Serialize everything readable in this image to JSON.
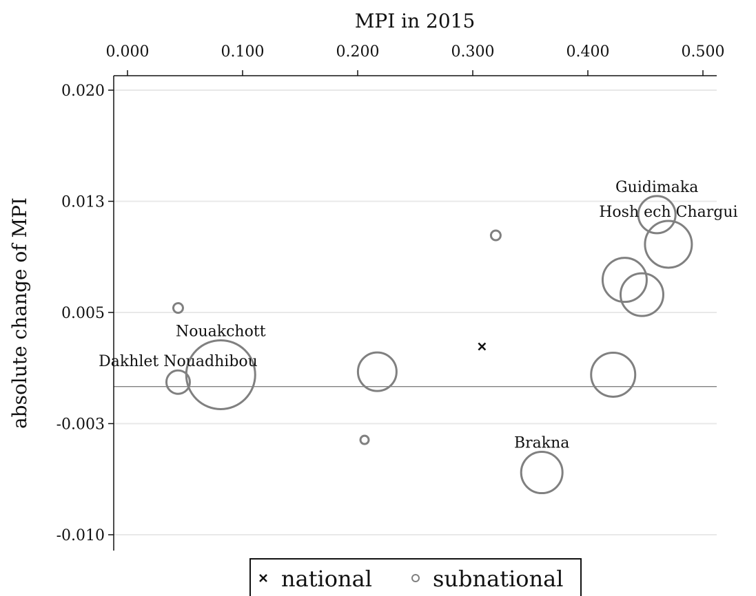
{
  "chart_data": {
    "type": "scatter",
    "title": "",
    "xlabel": "MPI in 2015",
    "ylabel": "absolute change of MPI",
    "xaxis_position": "top",
    "xlim": [
      0.0,
      0.5
    ],
    "ylim": [
      -0.01,
      0.02
    ],
    "x_ticks": [
      "0.000",
      "0.100",
      "0.200",
      "0.300",
      "0.400",
      "0.500"
    ],
    "x_tick_values": [
      0.0,
      0.1,
      0.2,
      0.3,
      0.4,
      0.5
    ],
    "y_ticks": [
      "0.020",
      "0.013",
      "0.005",
      "-0.003",
      "-0.010"
    ],
    "y_tick_values": [
      0.02,
      0.0125,
      0.005,
      -0.0025,
      -0.01
    ],
    "reference_line_y": 0,
    "grid": "horizontal",
    "legend": {
      "position": "bottom",
      "items": [
        {
          "label": "national",
          "marker": "x"
        },
        {
          "label": "subnational",
          "marker": "circle"
        }
      ]
    },
    "series": [
      {
        "name": "national",
        "marker": "x",
        "points": [
          {
            "x": 0.308,
            "y": 0.0027
          }
        ]
      },
      {
        "name": "subnational",
        "marker": "circle",
        "points": [
          {
            "label": "Dakhlet Nouadhibou",
            "x": 0.044,
            "y": 0.0003,
            "size": 17
          },
          {
            "label": "Nouakchott",
            "x": 0.081,
            "y": 0.0008,
            "size": 50
          },
          {
            "label": "",
            "x": 0.044,
            "y": 0.0053,
            "size": 7
          },
          {
            "label": "",
            "x": 0.206,
            "y": -0.0036,
            "size": 6
          },
          {
            "label": "",
            "x": 0.217,
            "y": 0.001,
            "size": 28
          },
          {
            "label": "",
            "x": 0.32,
            "y": 0.0102,
            "size": 7
          },
          {
            "label": "Brakna",
            "x": 0.36,
            "y": -0.0058,
            "size": 30
          },
          {
            "label": "",
            "x": 0.422,
            "y": 0.0008,
            "size": 32
          },
          {
            "label": "",
            "x": 0.432,
            "y": 0.0072,
            "size": 32
          },
          {
            "label": "",
            "x": 0.447,
            "y": 0.0062,
            "size": 31
          },
          {
            "label": "Guidimaka",
            "x": 0.46,
            "y": 0.0116,
            "size": 27
          },
          {
            "label": "Hosh ech Chargui",
            "x": 0.47,
            "y": 0.0096,
            "size": 34
          }
        ]
      }
    ],
    "colors": {
      "subnational_stroke": "#808080",
      "national_marker": "#111111",
      "grid": "#e8e8e8",
      "reference_line": "#808080",
      "axis": "#111111"
    }
  }
}
